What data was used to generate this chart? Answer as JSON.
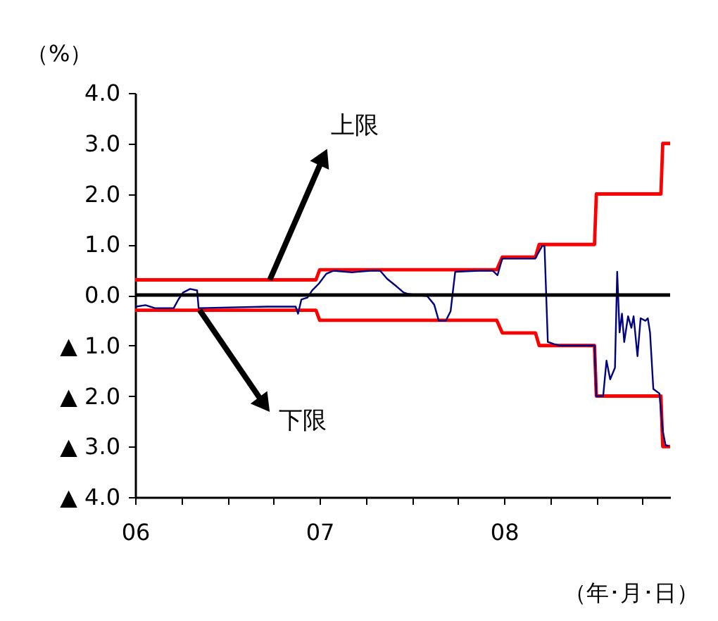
{
  "chart_data": {
    "type": "line",
    "ylabel": "（%）",
    "xlabel": "（年･月･日）",
    "xlim": [
      2006,
      2008.9
    ],
    "xticks": [
      {
        "value": 2006,
        "label": "06"
      },
      {
        "value": 2006.25,
        "label": null
      },
      {
        "value": 2006.5,
        "label": null
      },
      {
        "value": 2006.75,
        "label": null
      },
      {
        "value": 2007,
        "label": "07"
      },
      {
        "value": 2007.25,
        "label": null
      },
      {
        "value": 2007.5,
        "label": null
      },
      {
        "value": 2007.75,
        "label": null
      },
      {
        "value": 2008,
        "label": "08"
      },
      {
        "value": 2008.25,
        "label": null
      },
      {
        "value": 2008.5,
        "label": null
      },
      {
        "value": 2008.75,
        "label": null
      }
    ],
    "ylim": [
      -4,
      4
    ],
    "yticks": [
      {
        "value": 4,
        "label": "4.0"
      },
      {
        "value": 3,
        "label": "3.0"
      },
      {
        "value": 2,
        "label": "2.0"
      },
      {
        "value": 1,
        "label": "1.0"
      },
      {
        "value": 0,
        "label": "0.0"
      },
      {
        "value": -1,
        "label": "▲ 1.0"
      },
      {
        "value": -2,
        "label": "▲ 2.0"
      },
      {
        "value": -3,
        "label": "▲ 3.0"
      },
      {
        "value": -4,
        "label": "▲ 4.0"
      }
    ],
    "line_style": "solid",
    "series": [
      {
        "color": "#ff0000",
        "x": [
          2006.0,
          2006.98,
          2007.0,
          2007.96,
          2007.99,
          2008.17,
          2008.19,
          2008.49,
          2008.5,
          2008.85,
          2008.86,
          2008.9
        ],
        "values": [
          0.3,
          0.3,
          0.5,
          0.5,
          0.75,
          0.75,
          1.0,
          1.0,
          2.0,
          2.0,
          3.0,
          3.0
        ]
      },
      {
        "color": "#ff0000",
        "x": [
          2006.0,
          2006.98,
          2007.0,
          2007.96,
          2007.99,
          2008.17,
          2008.19,
          2008.49,
          2008.5,
          2008.85,
          2008.86,
          2008.9
        ],
        "values": [
          -0.3,
          -0.3,
          -0.5,
          -0.5,
          -0.75,
          -0.75,
          -1.0,
          -1.0,
          -2.0,
          -2.0,
          -3.0,
          -3.0
        ]
      },
      {
        "color": "#000080",
        "x": [
          2006.005,
          2006.056,
          2006.107,
          2006.209,
          2006.234,
          2006.26,
          2006.298,
          2006.336,
          2006.344,
          2006.718,
          2006.87,
          2006.883,
          2006.901,
          2006.934,
          2006.959,
          2006.997,
          2007.036,
          2007.074,
          2007.176,
          2007.277,
          2007.328,
          2007.366,
          2007.417,
          2007.455,
          2007.481,
          2007.583,
          2007.621,
          2007.646,
          2007.684,
          2007.71,
          2007.723,
          2007.735,
          2007.863,
          2007.939,
          2007.964,
          2007.99,
          2008.168,
          2008.206,
          2008.219,
          2008.237,
          2008.27,
          2008.3,
          2008.49,
          2008.5,
          2008.537,
          2008.555,
          2008.575,
          2008.601,
          2008.613,
          2008.626,
          2008.639,
          2008.651,
          2008.672,
          2008.69,
          2008.702,
          2008.723,
          2008.74,
          2008.766,
          2008.779,
          2008.791,
          2008.809,
          2008.842,
          2008.86,
          2008.875,
          2008.893
        ],
        "values": [
          -0.23,
          -0.2,
          -0.26,
          -0.26,
          -0.09,
          0.05,
          0.12,
          0.09,
          -0.26,
          -0.23,
          -0.23,
          -0.37,
          -0.09,
          -0.05,
          0.09,
          0.23,
          0.42,
          0.48,
          0.45,
          0.48,
          0.48,
          0.32,
          0.17,
          0.05,
          0.02,
          -0.02,
          -0.19,
          -0.51,
          -0.51,
          -0.32,
          0.09,
          0.46,
          0.48,
          0.48,
          0.39,
          0.72,
          0.72,
          0.97,
          0.97,
          -0.93,
          -0.97,
          -1.0,
          -1.0,
          -2.0,
          -2.0,
          -1.3,
          -1.67,
          -1.44,
          0.46,
          -0.74,
          -0.37,
          -0.93,
          -0.42,
          -0.65,
          -0.42,
          -1.21,
          -0.46,
          -0.51,
          -0.46,
          -0.74,
          -1.86,
          -1.95,
          -2.69,
          -2.97,
          -2.99
        ]
      }
    ],
    "ref_lines": [
      {
        "axis": "y",
        "value": 0,
        "color": "#000000"
      }
    ],
    "annotations": [
      {
        "text": "上限",
        "x": 2006.73,
        "y": 0.3
      },
      {
        "text": "下限",
        "x": 2006.35,
        "y": -0.3
      }
    ]
  }
}
